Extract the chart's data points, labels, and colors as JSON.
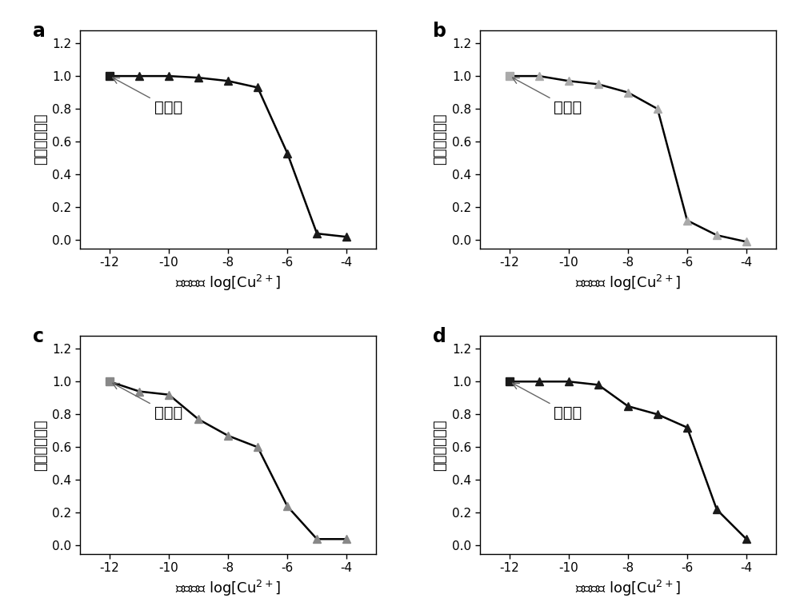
{
  "panels": [
    "a",
    "b",
    "c",
    "d"
  ],
  "x_values": [
    -12,
    -11,
    -10,
    -9,
    -8,
    -7,
    -6,
    -5,
    -4
  ],
  "y_data": {
    "a": [
      1.0,
      1.0,
      1.0,
      0.99,
      0.97,
      0.93,
      0.53,
      0.04,
      0.02
    ],
    "b": [
      1.0,
      1.0,
      0.97,
      0.95,
      0.9,
      0.8,
      0.12,
      0.03,
      -0.01
    ],
    "c": [
      1.0,
      0.94,
      0.92,
      0.77,
      0.67,
      0.6,
      0.24,
      0.04,
      0.04
    ],
    "d": [
      1.0,
      1.0,
      1.0,
      0.98,
      0.85,
      0.8,
      0.72,
      0.22,
      0.04
    ]
  },
  "marker_colors": {
    "a": "#1a1a1a",
    "b": "#aaaaaa",
    "c": "#888888",
    "d": "#1a1a1a"
  },
  "line_color": "#000000",
  "annotation_text": "无离子",
  "ylabel": "相对荧光强度",
  "xlim": [
    -13,
    -3
  ],
  "ylim": [
    -0.05,
    1.28
  ],
  "yticks": [
    0.0,
    0.2,
    0.4,
    0.6,
    0.8,
    1.0,
    1.2
  ],
  "xticks": [
    -12,
    -10,
    -8,
    -6,
    -4
  ],
  "plot_bg": "#ffffff",
  "fig_bg": "#ffffff",
  "tick_fontsize": 11,
  "label_fontsize": 13,
  "panel_label_fontsize": 17
}
